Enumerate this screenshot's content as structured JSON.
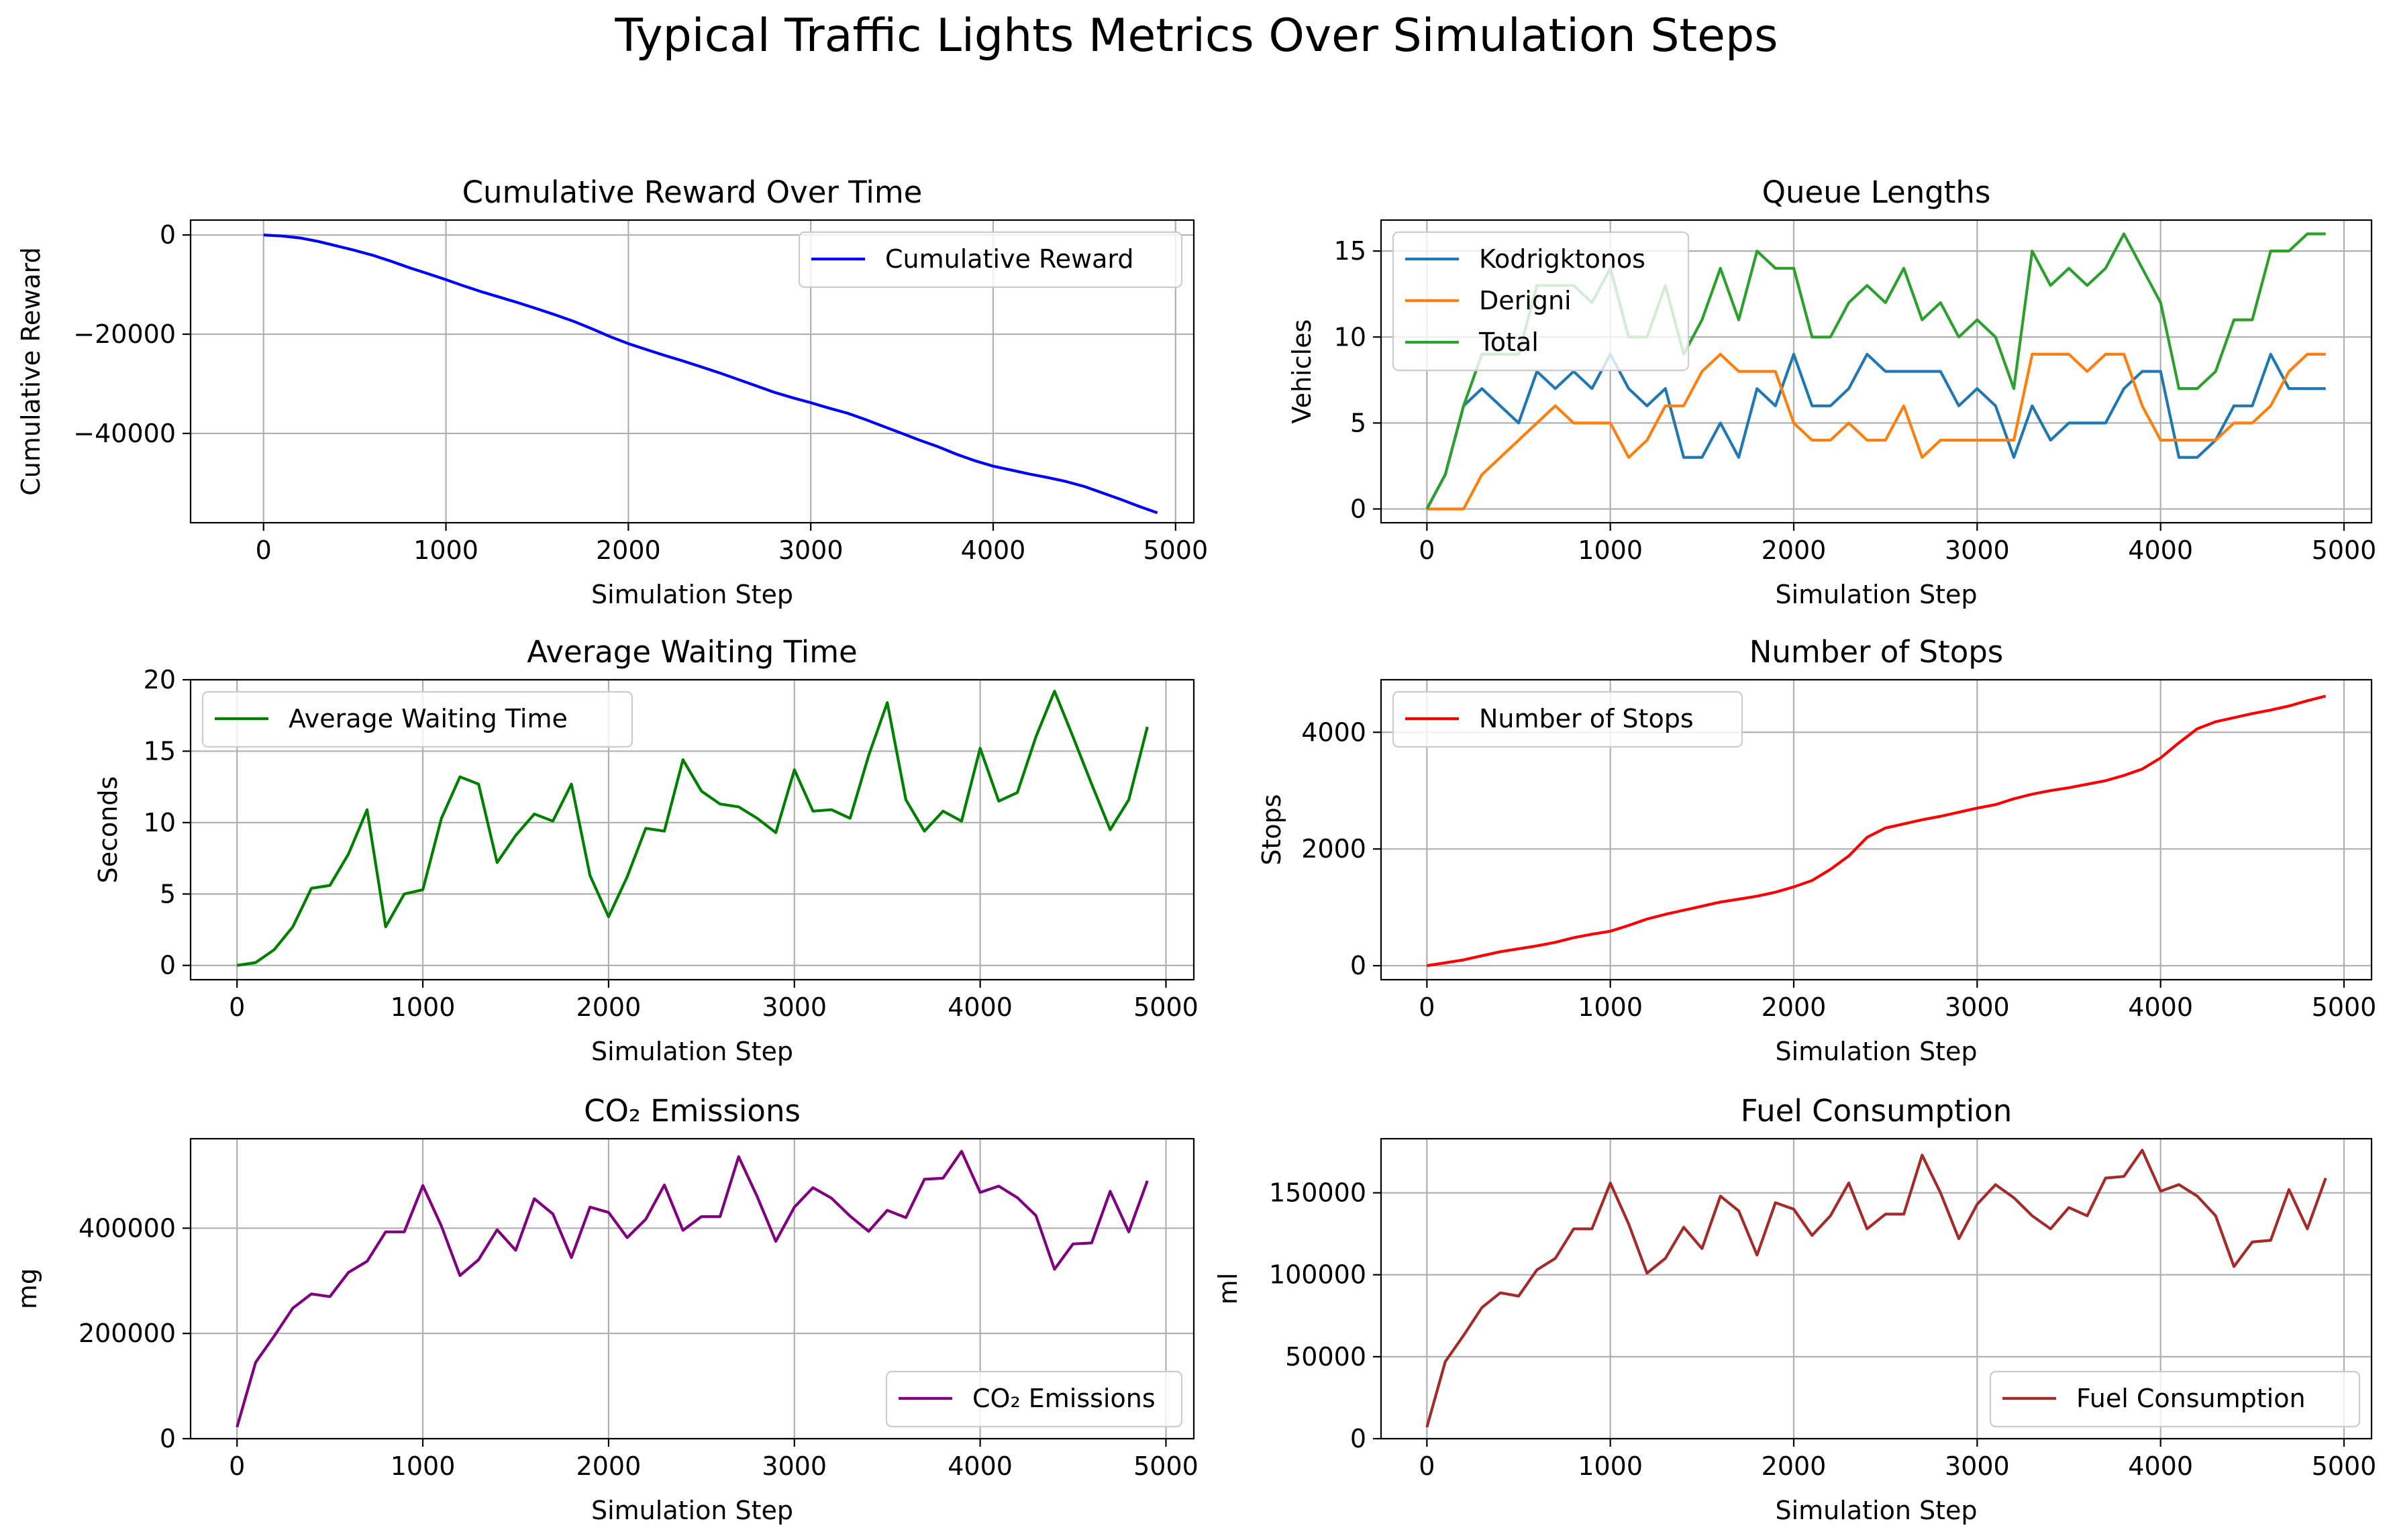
{
  "suptitle": "Typical Traffic Lights Metrics Over Simulation Steps",
  "chart_data": [
    {
      "type": "line",
      "title": "Cumulative Reward Over Time",
      "xlabel": "Simulation Step",
      "ylabel": "Cumulative Reward",
      "xlim": [
        -400,
        5100
      ],
      "ylim": [
        -58000,
        3000
      ],
      "xticks": [
        0,
        1000,
        2000,
        3000,
        4000,
        5000
      ],
      "yticks": [
        0,
        -20000,
        -40000
      ],
      "ytick_labels": [
        "0",
        "−20000",
        "−40000"
      ],
      "grid": true,
      "legend": "upper right",
      "x": [
        0,
        100,
        200,
        300,
        400,
        500,
        600,
        700,
        800,
        900,
        1000,
        1100,
        1200,
        1300,
        1400,
        1500,
        1600,
        1700,
        1800,
        1900,
        2000,
        2100,
        2200,
        2300,
        2400,
        2500,
        2600,
        2700,
        2800,
        2900,
        3000,
        3100,
        3200,
        3300,
        3400,
        3500,
        3600,
        3700,
        3800,
        3900,
        4000,
        4100,
        4200,
        4300,
        4400,
        4500,
        4600,
        4700,
        4800,
        4900
      ],
      "series": [
        {
          "name": "Cumulative Reward",
          "color": "#0000ff",
          "values": [
            0,
            -200,
            -600,
            -1300,
            -2200,
            -3100,
            -4100,
            -5300,
            -6600,
            -7800,
            -9000,
            -10300,
            -11500,
            -12600,
            -13700,
            -14900,
            -16100,
            -17400,
            -18900,
            -20500,
            -21900,
            -23100,
            -24300,
            -25400,
            -26600,
            -27800,
            -29100,
            -30400,
            -31700,
            -32800,
            -33800,
            -34900,
            -35900,
            -37200,
            -38600,
            -40000,
            -41400,
            -42700,
            -44200,
            -45500,
            -46600,
            -47400,
            -48200,
            -48900,
            -49700,
            -50700,
            -52000,
            -53300,
            -54700,
            -56000
          ]
        }
      ]
    },
    {
      "type": "line",
      "title": "Queue Lengths",
      "xlabel": "Simulation Step",
      "ylabel": "Vehicles",
      "xlim": [
        -250,
        5150
      ],
      "ylim": [
        -0.8,
        16.8
      ],
      "xticks": [
        0,
        1000,
        2000,
        3000,
        4000,
        5000
      ],
      "yticks": [
        0,
        5,
        10,
        15
      ],
      "grid": true,
      "legend": "upper left",
      "x": [
        0,
        100,
        200,
        300,
        400,
        500,
        600,
        700,
        800,
        900,
        1000,
        1100,
        1200,
        1300,
        1400,
        1500,
        1600,
        1700,
        1800,
        1900,
        2000,
        2100,
        2200,
        2300,
        2400,
        2500,
        2600,
        2700,
        2800,
        2900,
        3000,
        3100,
        3200,
        3300,
        3400,
        3500,
        3600,
        3700,
        3800,
        3900,
        4000,
        4100,
        4200,
        4300,
        4400,
        4500,
        4600,
        4700,
        4800,
        4900
      ],
      "series": [
        {
          "name": "Kodrigktonos",
          "color": "#1f77b4",
          "values": [
            0,
            2,
            6,
            7,
            6,
            5,
            8,
            7,
            8,
            7,
            9,
            7,
            6,
            7,
            3,
            3,
            5,
            3,
            7,
            6,
            9,
            6,
            6,
            7,
            9,
            8,
            8,
            8,
            8,
            6,
            7,
            6,
            3,
            6,
            4,
            5,
            5,
            5,
            7,
            8,
            8,
            3,
            3,
            4,
            6,
            6,
            9,
            7,
            7,
            7
          ]
        },
        {
          "name": "Derigni",
          "color": "#ff7f0e",
          "values": [
            0,
            0,
            0,
            2,
            3,
            4,
            5,
            6,
            5,
            5,
            5,
            3,
            4,
            6,
            6,
            8,
            9,
            8,
            8,
            8,
            5,
            4,
            4,
            5,
            4,
            4,
            6,
            3,
            4,
            4,
            4,
            4,
            4,
            9,
            9,
            9,
            8,
            9,
            9,
            6,
            4,
            4,
            4,
            4,
            5,
            5,
            6,
            8,
            9,
            9
          ]
        },
        {
          "name": "Total",
          "color": "#2ca02c",
          "values": [
            0,
            2,
            6,
            9,
            9,
            9,
            13,
            13,
            13,
            12,
            14,
            10,
            10,
            13,
            9,
            11,
            14,
            11,
            15,
            14,
            14,
            10,
            10,
            12,
            13,
            12,
            14,
            11,
            12,
            10,
            11,
            10,
            7,
            15,
            13,
            14,
            13,
            14,
            16,
            14,
            12,
            7,
            7,
            8,
            11,
            11,
            15,
            15,
            16,
            16
          ]
        }
      ]
    },
    {
      "type": "line",
      "title": "Average Waiting Time",
      "xlabel": "Simulation Step",
      "ylabel": "Seconds",
      "xlim": [
        -250,
        5150
      ],
      "ylim": [
        -1,
        20
      ],
      "xticks": [
        0,
        1000,
        2000,
        3000,
        4000,
        5000
      ],
      "yticks": [
        0,
        5,
        10,
        15,
        20
      ],
      "grid": true,
      "legend": "upper left",
      "x": [
        0,
        100,
        200,
        300,
        400,
        500,
        600,
        700,
        800,
        900,
        1000,
        1100,
        1200,
        1300,
        1400,
        1500,
        1600,
        1700,
        1800,
        1900,
        2000,
        2100,
        2200,
        2300,
        2400,
        2500,
        2600,
        2700,
        2800,
        2900,
        3000,
        3100,
        3200,
        3300,
        3400,
        3500,
        3600,
        3700,
        3800,
        3900,
        4000,
        4100,
        4200,
        4300,
        4400,
        4500,
        4600,
        4700,
        4800,
        4900
      ],
      "series": [
        {
          "name": "Average Waiting Time",
          "color": "#008000",
          "values": [
            0,
            0.2,
            1.1,
            2.7,
            5.4,
            5.6,
            7.8,
            10.9,
            2.7,
            5.0,
            5.3,
            10.3,
            13.2,
            12.7,
            7.2,
            9.1,
            10.6,
            10.1,
            12.7,
            6.3,
            3.4,
            6.2,
            9.6,
            9.4,
            14.4,
            12.2,
            11.3,
            11.1,
            10.3,
            9.3,
            13.7,
            10.8,
            10.9,
            10.3,
            14.7,
            18.4,
            11.6,
            9.4,
            10.8,
            10.1,
            15.2,
            11.5,
            12.1,
            16.0,
            19.2,
            16.0,
            12.7,
            9.5,
            11.6,
            16.7
          ]
        }
      ]
    },
    {
      "type": "line",
      "title": "Number of Stops",
      "xlabel": "Simulation Step",
      "ylabel": "Stops",
      "xlim": [
        -250,
        5150
      ],
      "ylim": [
        -240,
        4900
      ],
      "xticks": [
        0,
        1000,
        2000,
        3000,
        4000,
        5000
      ],
      "yticks": [
        0,
        2000,
        4000
      ],
      "grid": true,
      "legend": "upper left",
      "x": [
        0,
        100,
        200,
        300,
        400,
        500,
        600,
        700,
        800,
        900,
        1000,
        1100,
        1200,
        1300,
        1400,
        1500,
        1600,
        1700,
        1800,
        1900,
        2000,
        2100,
        2200,
        2300,
        2400,
        2500,
        2600,
        2700,
        2800,
        2900,
        3000,
        3100,
        3200,
        3300,
        3400,
        3500,
        3600,
        3700,
        3800,
        3900,
        4000,
        4100,
        4200,
        4300,
        4400,
        4500,
        4600,
        4700,
        4800,
        4900
      ],
      "series": [
        {
          "name": "Number of Stops",
          "color": "#ff0000",
          "values": [
            0,
            50,
            100,
            170,
            240,
            290,
            340,
            400,
            480,
            540,
            590,
            690,
            800,
            880,
            950,
            1020,
            1090,
            1140,
            1190,
            1260,
            1350,
            1460,
            1650,
            1880,
            2200,
            2360,
            2430,
            2500,
            2560,
            2630,
            2700,
            2760,
            2860,
            2940,
            3000,
            3050,
            3110,
            3170,
            3260,
            3370,
            3560,
            3820,
            4060,
            4180,
            4250,
            4320,
            4380,
            4450,
            4540,
            4620
          ]
        }
      ]
    },
    {
      "type": "line",
      "title": "CO₂ Emissions",
      "xlabel": "Simulation Step",
      "ylabel": "mg",
      "xlim": [
        -250,
        5150
      ],
      "ylim": [
        0,
        570000
      ],
      "xticks": [
        0,
        1000,
        2000,
        3000,
        4000,
        5000
      ],
      "yticks": [
        0,
        200000,
        400000
      ],
      "grid": true,
      "legend": "lower right",
      "x": [
        0,
        100,
        200,
        300,
        400,
        500,
        600,
        700,
        800,
        900,
        1000,
        1100,
        1200,
        1300,
        1400,
        1500,
        1600,
        1700,
        1800,
        1900,
        2000,
        2100,
        2200,
        2300,
        2400,
        2500,
        2600,
        2700,
        2800,
        2900,
        3000,
        3100,
        3200,
        3300,
        3400,
        3500,
        3600,
        3700,
        3800,
        3900,
        4000,
        4100,
        4200,
        4300,
        4400,
        4500,
        4600,
        4700,
        4800,
        4900
      ],
      "series": [
        {
          "name": "CO₂ Emissions",
          "color": "#800080",
          "values": [
            22000,
            145000,
            195000,
            248000,
            275000,
            270000,
            316000,
            337000,
            393000,
            393000,
            481000,
            404000,
            310000,
            340000,
            397000,
            358000,
            456000,
            427000,
            344000,
            440000,
            430000,
            382000,
            417000,
            482000,
            396000,
            422000,
            422000,
            536000,
            460000,
            375000,
            440000,
            477000,
            457000,
            423000,
            394000,
            434000,
            420000,
            493000,
            495000,
            546000,
            468000,
            480000,
            458000,
            424000,
            322000,
            370000,
            372000,
            470000,
            393000,
            490000
          ]
        }
      ]
    },
    {
      "type": "line",
      "title": "Fuel Consumption",
      "xlabel": "Simulation Step",
      "ylabel": "ml",
      "xlim": [
        -250,
        5150
      ],
      "ylim": [
        0,
        183000
      ],
      "xticks": [
        0,
        1000,
        2000,
        3000,
        4000,
        5000
      ],
      "yticks": [
        0,
        50000,
        100000,
        150000
      ],
      "grid": true,
      "legend": "lower right",
      "x": [
        0,
        100,
        200,
        300,
        400,
        500,
        600,
        700,
        800,
        900,
        1000,
        1100,
        1200,
        1300,
        1400,
        1500,
        1600,
        1700,
        1800,
        1900,
        2000,
        2100,
        2200,
        2300,
        2400,
        2500,
        2600,
        2700,
        2800,
        2900,
        3000,
        3100,
        3200,
        3300,
        3400,
        3500,
        3600,
        3700,
        3800,
        3900,
        4000,
        4100,
        4200,
        4300,
        4400,
        4500,
        4600,
        4700,
        4800,
        4900
      ],
      "series": [
        {
          "name": "Fuel Consumption",
          "color": "#a52a2a",
          "values": [
            7000,
            47000,
            63000,
            80000,
            89000,
            87000,
            103000,
            110000,
            128000,
            128000,
            156000,
            131000,
            101000,
            110000,
            129000,
            116000,
            148000,
            139000,
            112000,
            144000,
            140000,
            124000,
            136000,
            156000,
            128000,
            137000,
            137000,
            173000,
            150000,
            122000,
            143000,
            155000,
            147000,
            136000,
            128000,
            141000,
            136000,
            159000,
            160000,
            176000,
            151000,
            155000,
            148000,
            136000,
            105000,
            120000,
            121000,
            152000,
            128000,
            159000
          ]
        }
      ]
    }
  ]
}
